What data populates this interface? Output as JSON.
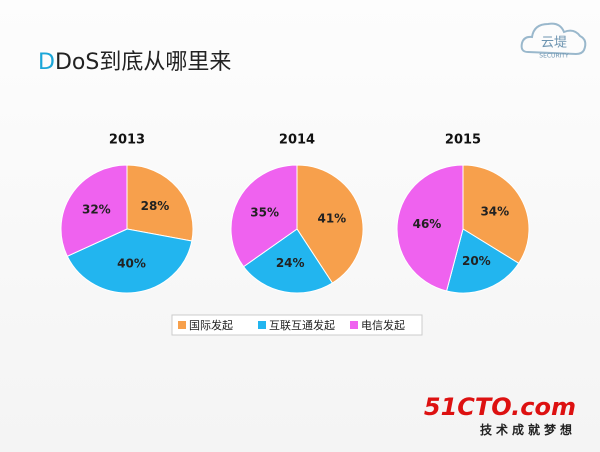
{
  "title": "DDoS到底从哪里来",
  "logos": {
    "cloud_name": "云堤",
    "cloud_sub": "SECURITY",
    "site_name": "51CTO.com",
    "site_slogan": "技术成就梦想"
  },
  "chart_data": [
    {
      "type": "pie",
      "title": "2013",
      "categories": [
        "国际发起",
        "互联互通发起",
        "电信发起"
      ],
      "values": [
        28,
        40,
        32
      ],
      "value_labels": [
        "28%",
        "40%",
        "32%"
      ],
      "colors": [
        "#f7a04c",
        "#22b5ef",
        "#ef62ef"
      ],
      "legend": "bottom"
    },
    {
      "type": "pie",
      "title": "2014",
      "categories": [
        "国际发起",
        "互联互通发起",
        "电信发起"
      ],
      "values": [
        41,
        24,
        35
      ],
      "value_labels": [
        "41%",
        "24%",
        "35%"
      ],
      "colors": [
        "#f7a04c",
        "#22b5ef",
        "#ef62ef"
      ]
    },
    {
      "type": "pie",
      "title": "2015",
      "categories": [
        "国际发起",
        "互联互通发起",
        "电信发起"
      ],
      "values": [
        34,
        20,
        46
      ],
      "value_labels": [
        "34%",
        "20%",
        "46%"
      ],
      "colors": [
        "#f7a04c",
        "#22b5ef",
        "#ef62ef"
      ]
    }
  ]
}
